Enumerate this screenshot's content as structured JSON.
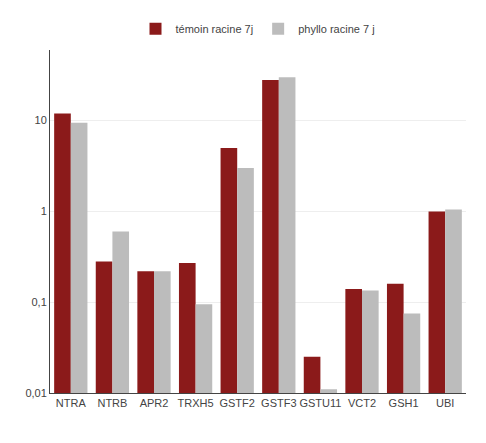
{
  "chart_data": {
    "type": "bar",
    "categories": [
      "NTRA",
      "NTRB",
      "APR2",
      "TRXH5",
      "GSTF2",
      "GSTF3",
      "GSTU11",
      "VCT2",
      "GSH1",
      "UBI"
    ],
    "series": [
      {
        "name": "témoin racine 7j",
        "color": "#8B1A1A",
        "values": [
          12.0,
          0.28,
          0.22,
          0.27,
          5.0,
          28.0,
          0.025,
          0.14,
          0.16,
          1.0
        ]
      },
      {
        "name": "phyllo racine 7 j",
        "color": "#BCBCBC",
        "values": [
          9.5,
          0.6,
          0.22,
          0.095,
          3.0,
          30.0,
          0.011,
          0.135,
          0.075,
          1.05
        ]
      }
    ],
    "ylim": [
      0.01,
      60
    ],
    "yticks": [
      {
        "value": 0.01,
        "label": "0,01"
      },
      {
        "value": 0.1,
        "label": "0,1"
      },
      1,
      10
    ],
    "log": "y",
    "grid": true,
    "legend": "top"
  }
}
